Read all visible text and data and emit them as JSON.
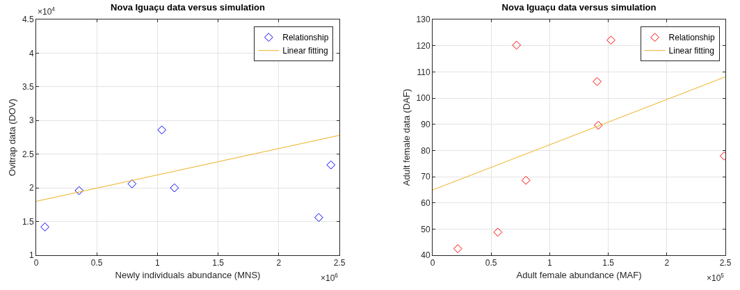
{
  "chart_data": [
    {
      "type": "scatter",
      "title": "Nova Iguaçu data versus simulation",
      "xlabel": "Newly individuals abundance (MNS)",
      "ylabel": "Ovitrap data (DOV)",
      "annotations": [
        "×10$^{6}$",
        "×10$^{4}$"
      ],
      "xlim": [
        0,
        2.5
      ],
      "xticks": [
        0,
        0.5,
        1,
        1.5,
        2,
        2.5
      ],
      "ylim": [
        1,
        4.5
      ],
      "yticks": [
        1,
        1.5,
        2,
        2.5,
        3,
        3.5,
        4,
        4.5
      ],
      "grid": true,
      "legend": "top right",
      "series": [
        {
          "name": "Relationship",
          "marker": "diamond",
          "color": "#0000ff",
          "x": [
            0.072,
            0.354,
            0.79,
            1.036,
            1.14,
            2.33,
            2.43
          ],
          "values": [
            1.42,
            1.96,
            2.06,
            2.86,
            2.0,
            1.56,
            2.34
          ]
        },
        {
          "name": "Linear fitting",
          "type": "line",
          "marker": "none",
          "color": "#edb120",
          "x": [
            0,
            2.5
          ],
          "values": [
            1.8,
            2.78
          ]
        }
      ]
    },
    {
      "type": "scatter",
      "title": "Nova Iguaçu data versus simulation",
      "xlabel": "Adult female abundance (MAF)",
      "ylabel": "Adult female data (DAF)",
      "annotations": [
        "×10$^{5}$"
      ],
      "xlim": [
        0,
        2.5
      ],
      "xticks": [
        0,
        0.5,
        1,
        1.5,
        2,
        2.5
      ],
      "ylim": [
        40,
        130
      ],
      "yticks": [
        40,
        50,
        60,
        70,
        80,
        90,
        100,
        110,
        120,
        130
      ],
      "grid": true,
      "legend": "top right",
      "series": [
        {
          "name": "Relationship",
          "marker": "diamond",
          "color": "#ff0000",
          "x": [
            0.215,
            0.557,
            0.717,
            0.797,
            1.405,
            1.415,
            1.523,
            2.49
          ],
          "values": [
            42.5,
            48.8,
            120.2,
            68.6,
            106.3,
            89.6,
            122.1,
            77.9
          ]
        },
        {
          "name": "Linear fitting",
          "type": "line",
          "marker": "none",
          "color": "#edb120",
          "x": [
            0,
            2.5
          ],
          "values": [
            64.9,
            108.1
          ]
        }
      ]
    }
  ]
}
